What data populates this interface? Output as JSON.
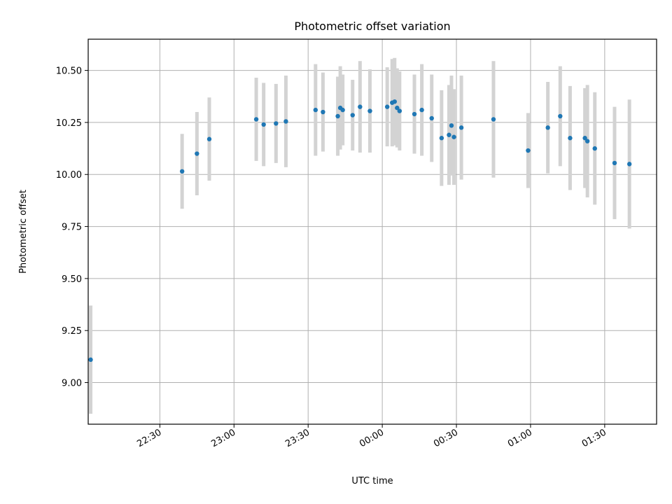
{
  "chart_data": {
    "type": "scatter",
    "title": "Photometric offset variation",
    "xlabel": "UTC time",
    "ylabel": "Photometric offset",
    "x_tick_labels": [
      "22:30",
      "23:00",
      "23:30",
      "00:00",
      "00:30",
      "01:00",
      "01:30"
    ],
    "x_ticks_min": [
      1350,
      1380,
      1410,
      1440,
      1470,
      1500,
      1530
    ],
    "y_ticks": [
      9.0,
      9.25,
      9.5,
      9.75,
      10.0,
      10.25,
      10.5
    ],
    "y_tick_labels": [
      "9.00",
      "9.25",
      "9.50",
      "9.75",
      "10.00",
      "10.25",
      "10.50"
    ],
    "xlim_min": [
      1321,
      1551
    ],
    "ylim": [
      8.8,
      10.65
    ],
    "grid": true,
    "marker_color": "#1f77b4",
    "errorbar_color": "#d3d3d3",
    "points": [
      {
        "t": 1322,
        "y": 9.11,
        "err": 0.26
      },
      {
        "t": 1359,
        "y": 10.015,
        "err": 0.18
      },
      {
        "t": 1365,
        "y": 10.1,
        "err": 0.2
      },
      {
        "t": 1370,
        "y": 10.17,
        "err": 0.2
      },
      {
        "t": 1389,
        "y": 10.265,
        "err": 0.2
      },
      {
        "t": 1392,
        "y": 10.24,
        "err": 0.2
      },
      {
        "t": 1397,
        "y": 10.245,
        "err": 0.19
      },
      {
        "t": 1401,
        "y": 10.255,
        "err": 0.22
      },
      {
        "t": 1413,
        "y": 10.31,
        "err": 0.22
      },
      {
        "t": 1416,
        "y": 10.3,
        "err": 0.19
      },
      {
        "t": 1422,
        "y": 10.28,
        "err": 0.19
      },
      {
        "t": 1423,
        "y": 10.32,
        "err": 0.2
      },
      {
        "t": 1424,
        "y": 10.31,
        "err": 0.17
      },
      {
        "t": 1428,
        "y": 10.285,
        "err": 0.17
      },
      {
        "t": 1431,
        "y": 10.325,
        "err": 0.22
      },
      {
        "t": 1435,
        "y": 10.305,
        "err": 0.2
      },
      {
        "t": 1442,
        "y": 10.325,
        "err": 0.19
      },
      {
        "t": 1444,
        "y": 10.345,
        "err": 0.21
      },
      {
        "t": 1445,
        "y": 10.35,
        "err": 0.21
      },
      {
        "t": 1446,
        "y": 10.32,
        "err": 0.19
      },
      {
        "t": 1447,
        "y": 10.305,
        "err": 0.19
      },
      {
        "t": 1453,
        "y": 10.29,
        "err": 0.19
      },
      {
        "t": 1456,
        "y": 10.31,
        "err": 0.22
      },
      {
        "t": 1460,
        "y": 10.27,
        "err": 0.21
      },
      {
        "t": 1464,
        "y": 10.175,
        "err": 0.23
      },
      {
        "t": 1467,
        "y": 10.19,
        "err": 0.24
      },
      {
        "t": 1468,
        "y": 10.235,
        "err": 0.24
      },
      {
        "t": 1469,
        "y": 10.18,
        "err": 0.23
      },
      {
        "t": 1472,
        "y": 10.225,
        "err": 0.25
      },
      {
        "t": 1485,
        "y": 10.265,
        "err": 0.28
      },
      {
        "t": 1499,
        "y": 10.115,
        "err": 0.18
      },
      {
        "t": 1507,
        "y": 10.225,
        "err": 0.22
      },
      {
        "t": 1512,
        "y": 10.28,
        "err": 0.24
      },
      {
        "t": 1516,
        "y": 10.175,
        "err": 0.25
      },
      {
        "t": 1522,
        "y": 10.175,
        "err": 0.24
      },
      {
        "t": 1523,
        "y": 10.16,
        "err": 0.27
      },
      {
        "t": 1526,
        "y": 10.125,
        "err": 0.27
      },
      {
        "t": 1534,
        "y": 10.055,
        "err": 0.27
      },
      {
        "t": 1540,
        "y": 10.05,
        "err": 0.31
      }
    ]
  }
}
